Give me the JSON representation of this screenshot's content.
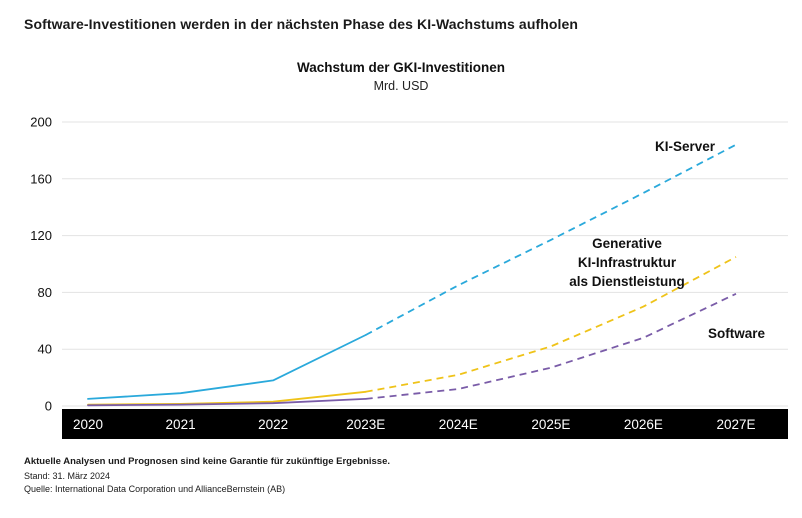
{
  "page": {
    "title": "Software-Investitionen werden in der nächsten Phase des KI-Wachstums aufholen"
  },
  "chart_data": {
    "type": "line",
    "title": "Wachstum der GKI-Investitionen",
    "subtitle": "Mrd. USD",
    "categories": [
      "2020",
      "2021",
      "2022",
      "2023E",
      "2024E",
      "2025E",
      "2026E",
      "2027E"
    ],
    "ylim": [
      0,
      200
    ],
    "yticks": [
      0,
      40,
      80,
      120,
      160,
      200
    ],
    "grid": true,
    "legend_position": "inline-labels",
    "forecast_start_index": 3,
    "axis_band_color": "#000000",
    "axis_label_color": "#ffffff",
    "series": [
      {
        "name": "KI-Server",
        "color": "#2aa9db",
        "style": "solid-then-dashed",
        "values": [
          5,
          9,
          18,
          50,
          85,
          117,
          150,
          184
        ]
      },
      {
        "name": "Generative KI-Infrastruktur als Dienstleistung",
        "color": "#efc319",
        "style": "solid-then-dashed",
        "values": [
          1,
          1.5,
          3,
          10,
          22,
          42,
          70,
          105
        ]
      },
      {
        "name": "Software",
        "color": "#7a5ca8",
        "style": "solid-then-dashed",
        "values": [
          0.5,
          1,
          2,
          5,
          12,
          27,
          48,
          79
        ]
      }
    ]
  },
  "labels": {
    "ki_server": "KI-Server",
    "gen_ki_line1": "Generative",
    "gen_ki_line2": "KI-Infrastruktur",
    "gen_ki_line3": "als Dienstleistung",
    "software": "Software"
  },
  "footer": {
    "disclaimer": "Aktuelle Analysen und Prognosen sind keine Garantie für zukünftige Ergebnisse.",
    "as_of": "Stand: 31. März 2024",
    "source": "Quelle: International Data Corporation und AllianceBernstein (AB)"
  }
}
